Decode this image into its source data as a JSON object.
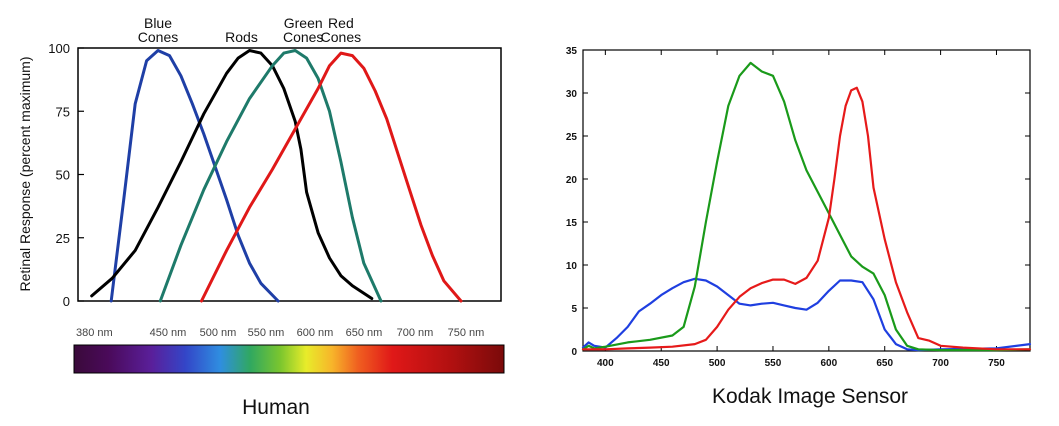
{
  "chart_data": [
    {
      "type": "line",
      "caption": "Human",
      "ylabel": "Retinal Response (percent maximum)",
      "ylim": [
        0,
        100
      ],
      "yticks": [
        0,
        25,
        50,
        75,
        100
      ],
      "xlim": [
        380,
        750
      ],
      "spectrum_ticks": [
        "380 nm",
        "450 nm",
        "500 nm",
        "550 nm",
        "600 nm",
        "650 nm",
        "700 nm",
        "750 nm"
      ],
      "grid": false,
      "series": [
        {
          "name": "Blue Cones",
          "label_lines": [
            "Blue",
            "Cones"
          ],
          "color": "#1f3fa6",
          "x": [
            409,
            420,
            430,
            440,
            450,
            460,
            470,
            480,
            490,
            500,
            510,
            520,
            530,
            540,
            555
          ],
          "y": [
            0,
            40,
            78,
            95,
            99,
            97,
            89,
            78,
            66,
            53,
            40,
            26,
            15,
            7,
            0
          ]
        },
        {
          "name": "Rods",
          "label_lines": [
            "Rods"
          ],
          "color": "#000000",
          "x": [
            392,
            410,
            430,
            450,
            470,
            490,
            510,
            520,
            530,
            540,
            550,
            560,
            570,
            575,
            580,
            590,
            600,
            610,
            620,
            637
          ],
          "y": [
            2,
            9,
            20,
            37,
            55,
            74,
            90,
            96,
            99,
            98,
            93,
            84,
            71,
            60,
            43,
            27,
            17,
            10,
            6,
            1
          ]
        },
        {
          "name": "Green Cones",
          "label_lines": [
            "Green",
            "Cones"
          ],
          "color": "#1e7a6a",
          "x": [
            452,
            470,
            490,
            510,
            530,
            550,
            560,
            570,
            580,
            590,
            600,
            610,
            620,
            630,
            645
          ],
          "y": [
            0,
            22,
            44,
            63,
            80,
            93,
            98,
            99,
            96,
            88,
            75,
            55,
            33,
            15,
            0
          ]
        },
        {
          "name": "Red Cones",
          "label_lines": [
            "Red",
            "Cones"
          ],
          "color": "#e01818",
          "x": [
            488,
            510,
            530,
            550,
            570,
            590,
            600,
            610,
            620,
            630,
            640,
            650,
            660,
            670,
            680,
            690,
            700,
            715
          ],
          "y": [
            0,
            20,
            37,
            52,
            68,
            84,
            93,
            98,
            97,
            92,
            83,
            72,
            58,
            44,
            30,
            18,
            8,
            0
          ]
        }
      ]
    },
    {
      "type": "line",
      "caption": "Kodak Image Sensor",
      "xlim": [
        380,
        780
      ],
      "ylim": [
        0,
        35
      ],
      "xticks": [
        400,
        450,
        500,
        550,
        600,
        650,
        700,
        750
      ],
      "yticks": [
        0,
        5,
        10,
        15,
        20,
        25,
        30,
        35
      ],
      "grid": false,
      "series": [
        {
          "color": "#1f3fe0",
          "x": [
            380,
            385,
            390,
            400,
            410,
            420,
            430,
            440,
            450,
            460,
            470,
            480,
            490,
            500,
            510,
            520,
            530,
            540,
            550,
            560,
            570,
            580,
            590,
            600,
            610,
            620,
            630,
            640,
            650,
            660,
            670,
            680,
            700,
            750,
            780
          ],
          "y": [
            0.4,
            1.0,
            0.6,
            0.4,
            1.5,
            2.8,
            4.6,
            5.5,
            6.5,
            7.3,
            8.0,
            8.4,
            8.2,
            7.5,
            6.5,
            5.5,
            5.3,
            5.5,
            5.6,
            5.3,
            5.0,
            4.8,
            5.6,
            7.0,
            8.2,
            8.2,
            8.0,
            6.0,
            2.5,
            0.8,
            0.2,
            0.1,
            0.2,
            0.3,
            0.8
          ]
        },
        {
          "color": "#1a9a1a",
          "x": [
            380,
            385,
            390,
            400,
            420,
            440,
            460,
            470,
            480,
            490,
            500,
            510,
            520,
            530,
            540,
            550,
            560,
            570,
            580,
            590,
            600,
            610,
            620,
            630,
            640,
            650,
            660,
            670,
            680,
            700,
            750,
            780
          ],
          "y": [
            0.2,
            0.6,
            0.3,
            0.5,
            1.0,
            1.3,
            1.8,
            2.8,
            7.5,
            15.0,
            22.0,
            28.5,
            32.0,
            33.5,
            32.5,
            32.0,
            29.0,
            24.5,
            21.0,
            18.5,
            16.0,
            13.5,
            11.0,
            9.8,
            9.0,
            6.5,
            2.5,
            0.6,
            0.2,
            0.1,
            0.1,
            0.2
          ]
        },
        {
          "color": "#e61a1a",
          "x": [
            380,
            400,
            420,
            440,
            460,
            480,
            490,
            500,
            510,
            520,
            530,
            540,
            550,
            560,
            570,
            580,
            590,
            600,
            605,
            610,
            615,
            620,
            625,
            630,
            635,
            640,
            650,
            660,
            670,
            680,
            690,
            700,
            720,
            750,
            780
          ],
          "y": [
            0.2,
            0.2,
            0.3,
            0.4,
            0.5,
            0.8,
            1.3,
            2.8,
            4.8,
            6.3,
            7.3,
            7.9,
            8.3,
            8.3,
            7.8,
            8.5,
            10.5,
            15.5,
            20.0,
            25.0,
            28.5,
            30.3,
            30.6,
            29.0,
            25.0,
            19.0,
            13.0,
            8.0,
            4.5,
            1.5,
            1.2,
            0.6,
            0.4,
            0.2,
            0.2
          ]
        }
      ]
    }
  ]
}
